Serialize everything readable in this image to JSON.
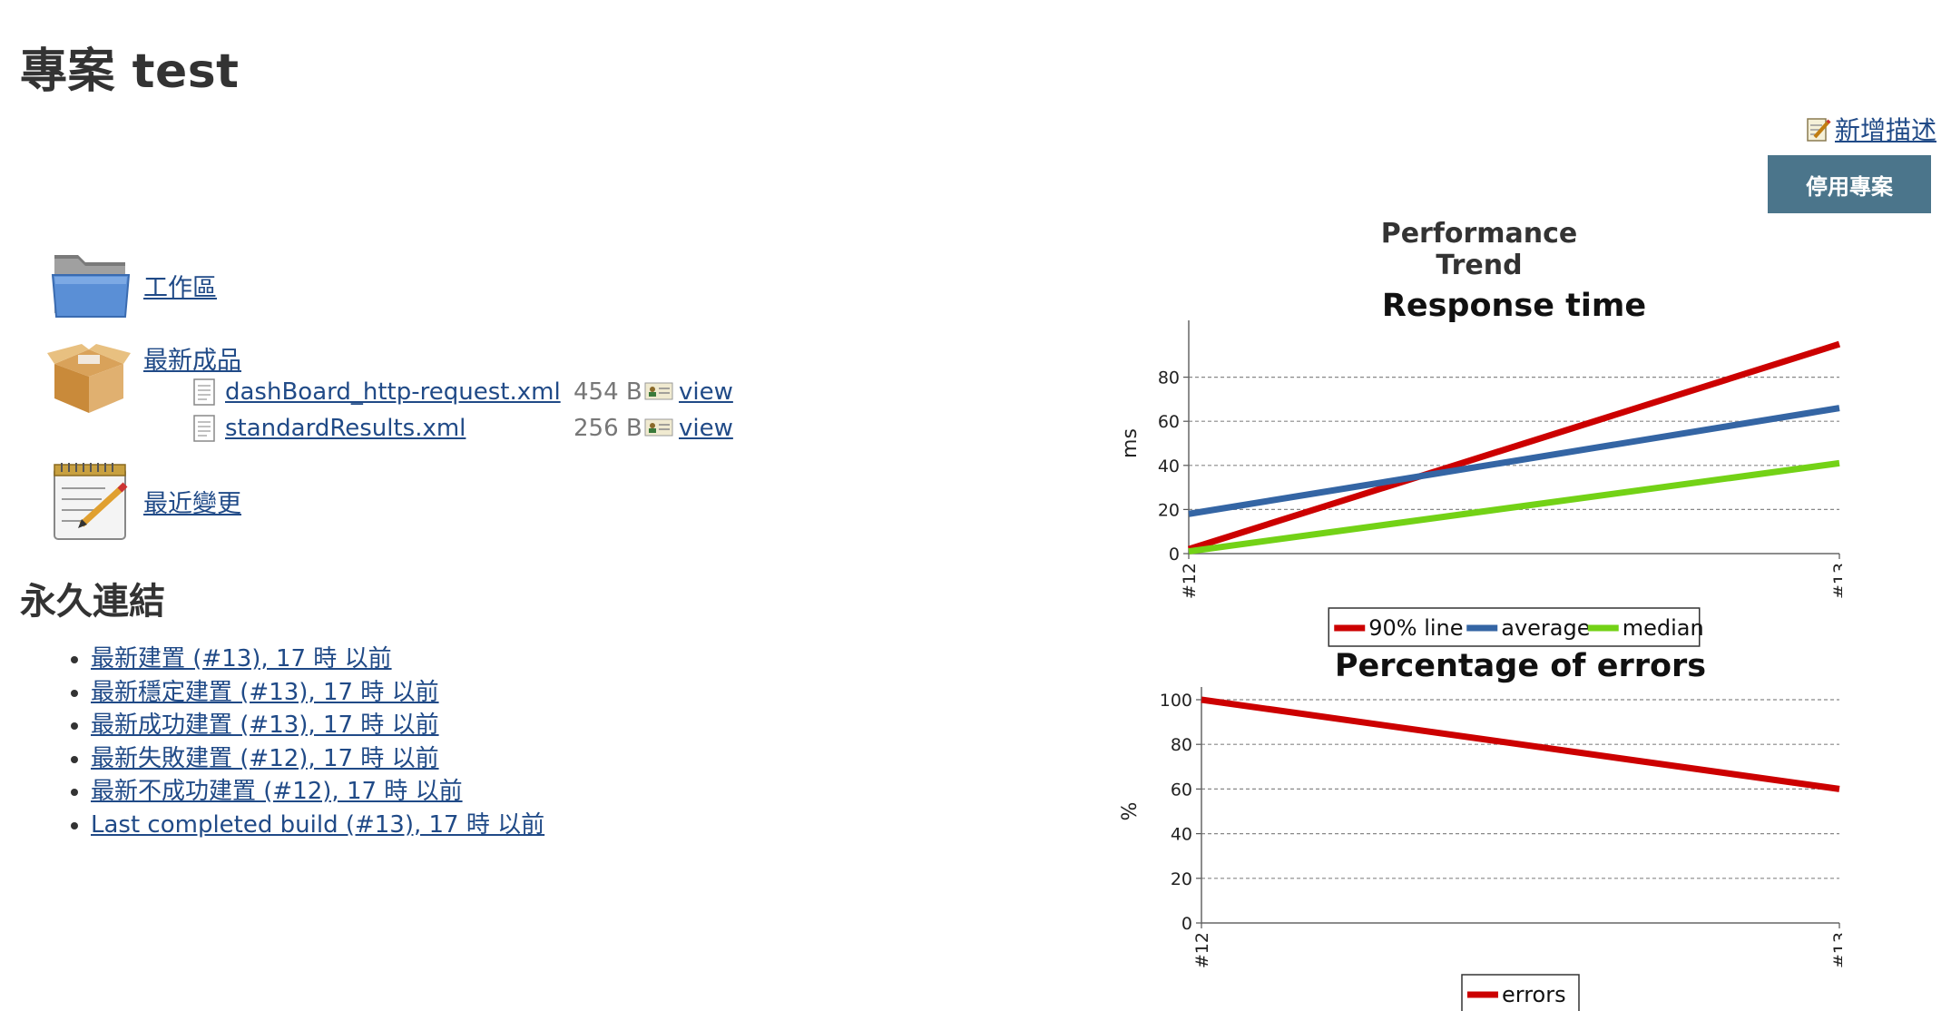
{
  "title": "專案 test",
  "add_description": "新增描述",
  "disable_button": "停用專案",
  "tasks": {
    "workspace": "工作區",
    "artifacts": "最新成品",
    "changes": "最近變更"
  },
  "artifacts": [
    {
      "name": "dashBoard_http-request.xml",
      "size": "454 B",
      "view": "view"
    },
    {
      "name": "standardResults.xml",
      "size": "256 B",
      "view": "view"
    }
  ],
  "permalinks_title": "永久連結",
  "permalinks": [
    "最新建置 (#13), 17 時 以前",
    "最新穩定建置 (#13), 17 時 以前",
    "最新成功建置 (#13), 17 時 以前",
    "最新失敗建置 (#12), 17 時 以前",
    "最新不成功建置 (#12), 17 時 以前",
    "Last completed build (#13), 17 時 以前"
  ],
  "trend_title": "Performance Trend",
  "icons": {
    "add_description": "notepad-pencil-icon",
    "workspace": "folder-icon",
    "artifacts": "package-box-icon",
    "changes": "notepad-icon",
    "file": "document-icon",
    "view": "view-card-icon"
  },
  "chart_data": [
    {
      "type": "line",
      "title": "Response time",
      "ylabel": "ms",
      "categories": [
        "#12",
        "#13"
      ],
      "ylim": [
        0,
        100
      ],
      "yticks": [
        0,
        20,
        40,
        60,
        80
      ],
      "grid": true,
      "legend": "bottom",
      "series": [
        {
          "name": "90% line",
          "values": [
            2,
            95
          ],
          "color": "#cc0000"
        },
        {
          "name": "average",
          "values": [
            18,
            66
          ],
          "color": "#3465a4"
        },
        {
          "name": "median",
          "values": [
            1,
            41
          ],
          "color": "#73d216"
        }
      ]
    },
    {
      "type": "line",
      "title": "Percentage of errors",
      "ylabel": "%",
      "categories": [
        "#12",
        "#13"
      ],
      "ylim": [
        0,
        100
      ],
      "yticks": [
        0,
        20,
        40,
        60,
        80,
        100
      ],
      "grid": true,
      "legend": "bottom",
      "series": [
        {
          "name": "errors",
          "values": [
            100,
            60
          ],
          "color": "#cc0000"
        }
      ]
    }
  ]
}
